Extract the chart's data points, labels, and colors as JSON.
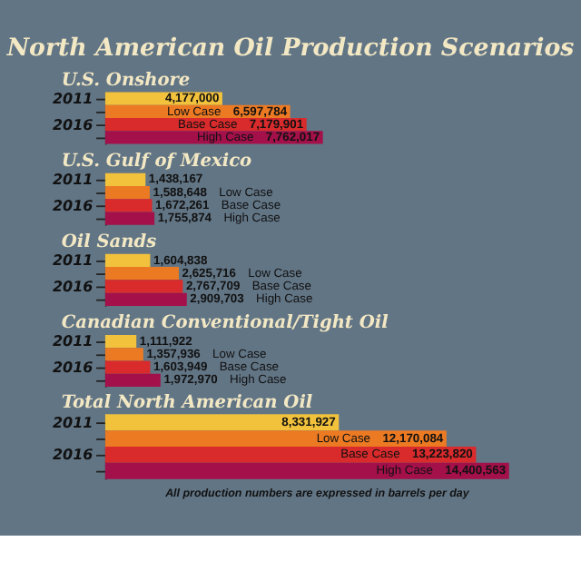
{
  "chart_data": [
    {
      "type": "bar",
      "orientation": "horizontal",
      "title": "North American Oil Production Scenarios",
      "subtitle": "U.S. Onshore",
      "categories": [
        "2011",
        "2016"
      ],
      "series": [
        {
          "color": "#f2c23c",
          "values": [
            4177000,
            null
          ],
          "value_labels": [
            "4,177,000",
            null
          ]
        },
        {
          "name": "Low Case",
          "color": "#ec7a23",
          "values": [
            null,
            6597784
          ],
          "value_labels": [
            null,
            "6,597,784"
          ]
        },
        {
          "name": "Base Case",
          "color": "#d92a2c",
          "values": [
            null,
            7179901
          ],
          "value_labels": [
            null,
            "7,179,901"
          ]
        },
        {
          "name": "High Case",
          "color": "#a3104a",
          "values": [
            null,
            7762017
          ],
          "value_labels": [
            null,
            "7,762,017"
          ]
        }
      ]
    },
    {
      "type": "bar",
      "orientation": "horizontal",
      "title": "U.S. Gulf of Mexico",
      "categories": [
        "2011",
        "2016"
      ],
      "series": [
        {
          "color": "#f2c23c",
          "values": [
            1438167,
            null
          ],
          "value_labels": [
            "1,438,167",
            null
          ]
        },
        {
          "name": "Low Case",
          "color": "#ec7a23",
          "values": [
            null,
            1588648
          ],
          "value_labels": [
            null,
            "1,588,648"
          ]
        },
        {
          "name": "Base Case",
          "color": "#d92a2c",
          "values": [
            null,
            1672261
          ],
          "value_labels": [
            null,
            "1,672,261"
          ]
        },
        {
          "name": "High Case",
          "color": "#a3104a",
          "values": [
            null,
            1755874
          ],
          "value_labels": [
            null,
            "1,755,874"
          ]
        }
      ]
    },
    {
      "type": "bar",
      "orientation": "horizontal",
      "title": "Oil Sands",
      "categories": [
        "2011",
        "2016"
      ],
      "series": [
        {
          "color": "#f2c23c",
          "values": [
            1604838,
            null
          ],
          "value_labels": [
            "1,604,838",
            null
          ]
        },
        {
          "name": "Low Case",
          "color": "#ec7a23",
          "values": [
            null,
            2625716
          ],
          "value_labels": [
            null,
            "2,625,716"
          ]
        },
        {
          "name": "Base Case",
          "color": "#d92a2c",
          "values": [
            null,
            2767709
          ],
          "value_labels": [
            null,
            "2,767,709"
          ]
        },
        {
          "name": "High Case",
          "color": "#a3104a",
          "values": [
            null,
            2909703
          ],
          "value_labels": [
            null,
            "2,909,703"
          ]
        }
      ]
    },
    {
      "type": "bar",
      "orientation": "horizontal",
      "title": "Canadian Conventional/Tight Oil",
      "categories": [
        "2011",
        "2016"
      ],
      "series": [
        {
          "color": "#f2c23c",
          "values": [
            1111922,
            null
          ],
          "value_labels": [
            "1,111,922",
            null
          ]
        },
        {
          "name": "Low Case",
          "color": "#ec7a23",
          "values": [
            null,
            1357936
          ],
          "value_labels": [
            null,
            "1,357,936"
          ]
        },
        {
          "name": "Base Case",
          "color": "#d92a2c",
          "values": [
            null,
            1603949
          ],
          "value_labels": [
            null,
            "1,603,949"
          ]
        },
        {
          "name": "High Case",
          "color": "#a3104a",
          "values": [
            null,
            1972970
          ],
          "value_labels": [
            null,
            "1,972,970"
          ]
        }
      ]
    },
    {
      "type": "bar",
      "orientation": "horizontal",
      "title": "Total North American Oil",
      "categories": [
        "2011",
        "2016"
      ],
      "annotations": [
        "All production numbers are expressed in barrels per day"
      ],
      "series": [
        {
          "color": "#f2c23c",
          "values": [
            8331927,
            null
          ],
          "value_labels": [
            "8,331,927",
            null
          ]
        },
        {
          "name": "Low Case",
          "color": "#ec7a23",
          "values": [
            null,
            12170084
          ],
          "value_labels": [
            null,
            "12,170,084"
          ]
        },
        {
          "name": "Base Case",
          "color": "#d92a2c",
          "values": [
            null,
            13223820
          ],
          "value_labels": [
            null,
            "13,223,820"
          ]
        },
        {
          "name": "High Case",
          "color": "#a3104a",
          "values": [
            null,
            14400563
          ],
          "value_labels": [
            null,
            "14,400,563"
          ]
        }
      ]
    }
  ]
}
